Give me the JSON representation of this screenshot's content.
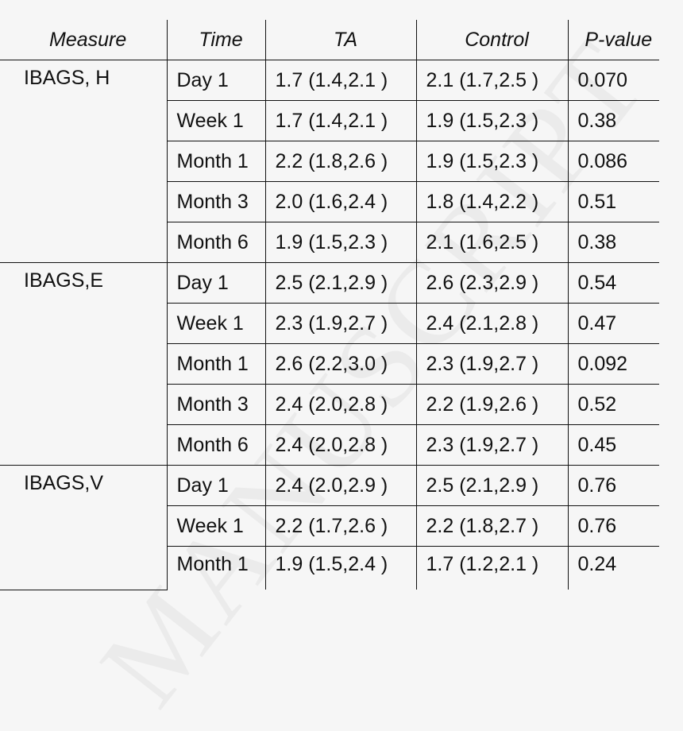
{
  "table": {
    "headers": [
      "Measure",
      "Time",
      "TA",
      "Control",
      "P-value"
    ],
    "groups": [
      {
        "measure": "IBAGS, H",
        "rows": [
          {
            "time": "Day 1",
            "ta": "1.7 (1.4,2.1 )",
            "control": "2.1 (1.7,2.5 )",
            "p": "0.070"
          },
          {
            "time": "Week 1",
            "ta": "1.7 (1.4,2.1 )",
            "control": "1.9 (1.5,2.3 )",
            "p": "0.38"
          },
          {
            "time": "Month 1",
            "ta": "2.2 (1.8,2.6 )",
            "control": "1.9 (1.5,2.3 )",
            "p": "0.086"
          },
          {
            "time": "Month 3",
            "ta": "2.0 (1.6,2.4 )",
            "control": "1.8 (1.4,2.2 )",
            "p": "0.51"
          },
          {
            "time": "Month 6",
            "ta": "1.9 (1.5,2.3 )",
            "control": "2.1 (1.6,2.5 )",
            "p": "0.38"
          }
        ]
      },
      {
        "measure": "IBAGS,E",
        "rows": [
          {
            "time": "Day 1",
            "ta": "2.5 (2.1,2.9 )",
            "control": "2.6 (2.3,2.9 )",
            "p": "0.54"
          },
          {
            "time": "Week 1",
            "ta": "2.3 (1.9,2.7 )",
            "control": "2.4 (2.1,2.8 )",
            "p": "0.47"
          },
          {
            "time": "Month 1",
            "ta": "2.6 (2.2,3.0 )",
            "control": "2.3 (1.9,2.7 )",
            "p": "0.092"
          },
          {
            "time": "Month 3",
            "ta": "2.4 (2.0,2.8 )",
            "control": "2.2 (1.9,2.6 )",
            "p": "0.52"
          },
          {
            "time": "Month 6",
            "ta": "2.4 (2.0,2.8 )",
            "control": "2.3 (1.9,2.7 )",
            "p": "0.45"
          }
        ]
      },
      {
        "measure": "IBAGS,V",
        "rows": [
          {
            "time": "Day 1",
            "ta": "2.4 (2.0,2.9 )",
            "control": "2.5 (2.1,2.9 )",
            "p": "0.76"
          },
          {
            "time": "Week 1",
            "ta": "2.2 (1.7,2.6 )",
            "control": "2.2 (1.8,2.7 )",
            "p": "0.76"
          },
          {
            "time": "Month 1",
            "ta": "1.9 (1.5,2.4 )",
            "control": "1.7 (1.2,2.1 )",
            "p": "0.24"
          }
        ]
      }
    ]
  },
  "watermark": "MANUSCRIPT"
}
